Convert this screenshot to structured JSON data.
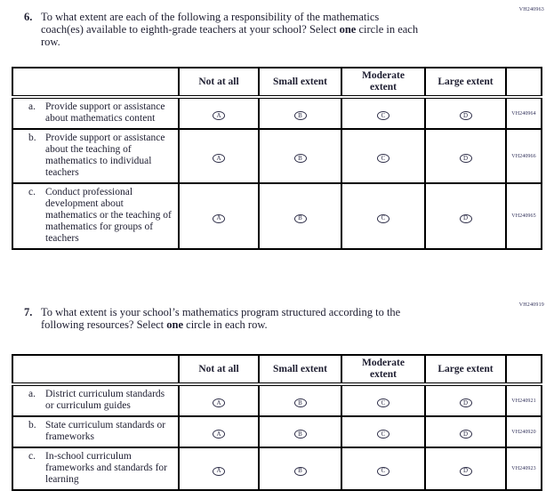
{
  "page": {
    "background": "#ffffff",
    "text_color": "#1d1d30",
    "border_color": "#000000",
    "code_color": "#31315a"
  },
  "option_letters": [
    "A",
    "B",
    "C",
    "D"
  ],
  "questions": [
    {
      "number": "6.",
      "code": "VH240963",
      "prompt": {
        "pre": "To what extent are each of the following a responsibility of the mathematics\ncoach(es) available to eighth-grade teachers at your school? Select ",
        "bold": "one",
        "post": " circle in each\nrow."
      },
      "columns": [
        "Not at all",
        "Small extent",
        "Moderate\nextent",
        "Large extent"
      ],
      "rows": [
        {
          "label": "a.",
          "text": "Provide support or assistance about mathematics content",
          "code": "VH240964"
        },
        {
          "label": "b.",
          "text": "Provide support or assistance about the teaching of mathematics to individual teachers",
          "code": "VH240966"
        },
        {
          "label": "c.",
          "text": "Conduct professional development about mathematics or the teaching of mathematics for groups of teachers",
          "code": "VH240965"
        }
      ]
    },
    {
      "number": "7.",
      "code": "VH240919",
      "prompt": {
        "pre": "To what extent is your school’s mathematics program structured according to the\nfollowing resources? Select ",
        "bold": "one",
        "post": " circle in each row."
      },
      "columns": [
        "Not at all",
        "Small extent",
        "Moderate\nextent",
        "Large extent"
      ],
      "rows": [
        {
          "label": "a.",
          "text": "District curriculum standards or curriculum guides",
          "code": "VH240921"
        },
        {
          "label": "b.",
          "text": "State curriculum standards or frameworks",
          "code": "VH240920"
        },
        {
          "label": "c.",
          "text": "In-school curriculum frameworks and standards for learning",
          "code": "VH240923"
        }
      ]
    }
  ]
}
